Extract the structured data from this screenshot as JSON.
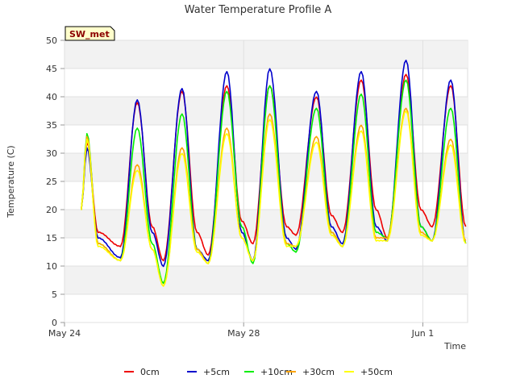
{
  "chart_data": {
    "type": "line",
    "title": "Water Temperature Profile A",
    "xlabel": "Time",
    "ylabel": "Temperature (C)",
    "site_label": "SW_met",
    "ylim": [
      0,
      50
    ],
    "yticks": [
      0,
      5,
      10,
      15,
      20,
      25,
      30,
      35,
      40,
      45,
      50
    ],
    "xlim": [
      "2024-05-24",
      "2024-06-02"
    ],
    "xticks": [
      {
        "date": "2024-05-24",
        "label": "May 24"
      },
      {
        "date": "2024-05-28",
        "label": "May 28"
      },
      {
        "date": "2024-06-01",
        "label": "Jun 1"
      }
    ],
    "grid": true,
    "legend_position": "bottom",
    "x_dates": [
      "2024-05-24 09:00",
      "2024-05-24 12:00",
      "2024-05-24 18:00",
      "2024-05-25 06:00",
      "2024-05-25 15:00",
      "2024-05-25 23:00",
      "2024-05-26 05:00",
      "2024-05-26 15:00",
      "2024-05-26 23:00",
      "2024-05-27 05:00",
      "2024-05-27 15:00",
      "2024-05-27 23:00",
      "2024-05-28 05:00",
      "2024-05-28 14:00",
      "2024-05-28 23:00",
      "2024-05-29 04:00",
      "2024-05-29 15:00",
      "2024-05-29 23:00",
      "2024-05-30 05:00",
      "2024-05-30 15:00",
      "2024-05-30 23:00",
      "2024-05-31 05:00",
      "2024-05-31 15:00",
      "2024-05-31 23:00",
      "2024-06-01 05:00",
      "2024-06-01 15:00",
      "2024-06-01 23:00"
    ],
    "series": [
      {
        "name": "0cm",
        "color": "#ee0000",
        "values": [
          20,
          32,
          16,
          13.5,
          39,
          17,
          11,
          41,
          16,
          12,
          42,
          18,
          14,
          42,
          17,
          15.5,
          40,
          19,
          16,
          43,
          20,
          15,
          44,
          20,
          17,
          42,
          17
        ]
      },
      {
        "name": "+5cm",
        "color": "#0000cc",
        "values": [
          20,
          31,
          15,
          11.5,
          39.5,
          16,
          10,
          41.5,
          13,
          11,
          44.5,
          16,
          11,
          45,
          15,
          13,
          41,
          17,
          14,
          44.5,
          17,
          14.5,
          46.5,
          17,
          14.5,
          43,
          14
        ]
      },
      {
        "name": "+10cm",
        "color": "#00ee00",
        "values": [
          20,
          33.5,
          14,
          11,
          34.5,
          14,
          7,
          37,
          13,
          10.5,
          41,
          17,
          10.5,
          42,
          14,
          12.5,
          38,
          16,
          13.5,
          40.5,
          16,
          15,
          43,
          17,
          14.5,
          38,
          14
        ]
      },
      {
        "name": "+30cm",
        "color": "#ffa500",
        "values": [
          20,
          33,
          14,
          11,
          28,
          13,
          6.5,
          31,
          13,
          10.5,
          34.5,
          15,
          11,
          37,
          14,
          13.5,
          33,
          16,
          13.5,
          35,
          15,
          15,
          38,
          16,
          14.5,
          32.5,
          14.5
        ]
      },
      {
        "name": "+50cm",
        "color": "#ffff00",
        "values": [
          20,
          32.5,
          13.5,
          11,
          27,
          13,
          6.5,
          30,
          12.5,
          10.5,
          33.5,
          15,
          11,
          36,
          13.5,
          13.5,
          32,
          15.5,
          13.5,
          34,
          14.5,
          14.5,
          37.5,
          15.5,
          14.5,
          31.5,
          14
        ]
      }
    ]
  }
}
